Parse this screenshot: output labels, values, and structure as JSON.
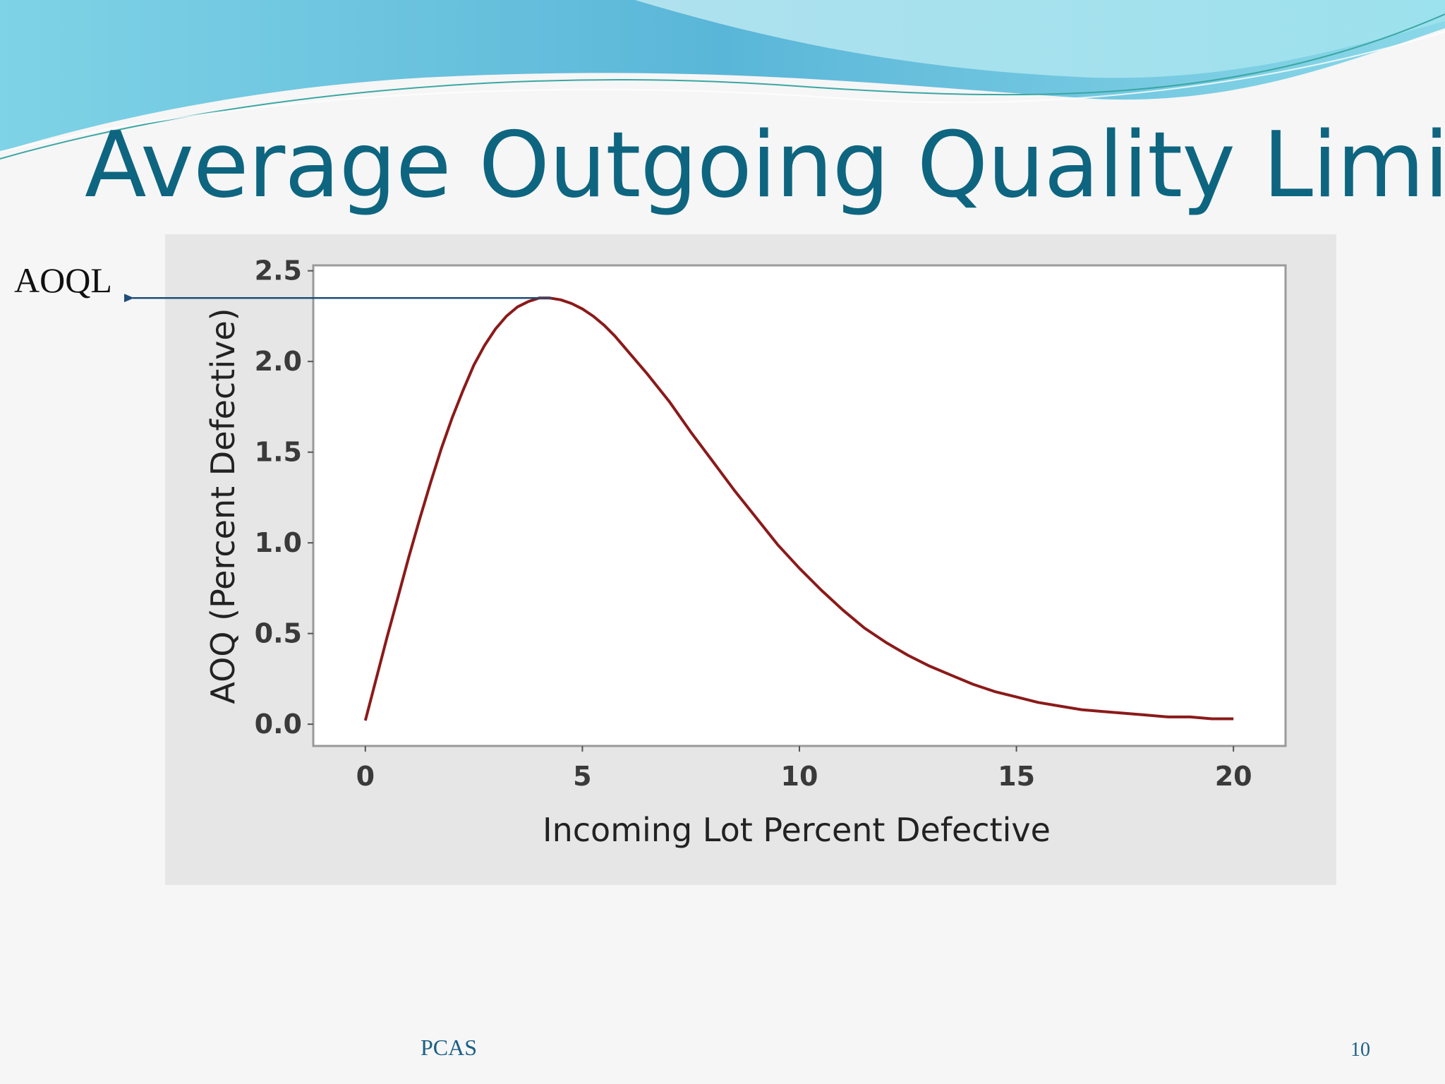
{
  "slide": {
    "title": "Average Outgoing Quality Limit",
    "footer_center": "PCAS",
    "page_number": "10"
  },
  "annotation": {
    "label": "AOQL",
    "points_to_y": 2.35
  },
  "chart_data": {
    "type": "line",
    "title": "",
    "xlabel": "Incoming Lot Percent Defective",
    "ylabel": "AOQ (Percent Defective)",
    "xlim": [
      -1.2,
      21.2
    ],
    "ylim": [
      -0.12,
      2.53
    ],
    "xticks": [
      0,
      5,
      10,
      15,
      20
    ],
    "xtick_labels": [
      "0",
      "5",
      "10",
      "15",
      "20"
    ],
    "yticks": [
      0.0,
      0.5,
      1.0,
      1.5,
      2.0,
      2.5
    ],
    "ytick_labels": [
      "0.0",
      "0.5",
      "1.0",
      "1.5",
      "2.0",
      "2.5"
    ],
    "grid": false,
    "colors": {
      "line": "#8b1a1a",
      "annotation": "#1f4e79",
      "panel": "#e6e6e6",
      "plot": "#ffffff",
      "frame": "#9a9a9a"
    },
    "series": [
      {
        "name": "AOQ",
        "x": [
          0,
          0.25,
          0.5,
          0.75,
          1.0,
          1.25,
          1.5,
          1.75,
          2.0,
          2.25,
          2.5,
          2.75,
          3.0,
          3.25,
          3.5,
          3.75,
          4.0,
          4.25,
          4.5,
          4.75,
          5.0,
          5.25,
          5.5,
          5.75,
          6.0,
          6.5,
          7.0,
          7.5,
          8.0,
          8.5,
          9.0,
          9.5,
          10.0,
          10.5,
          11.0,
          11.5,
          12.0,
          12.5,
          13.0,
          13.5,
          14.0,
          14.5,
          15.0,
          15.5,
          16.0,
          16.5,
          17.0,
          17.5,
          18.0,
          18.5,
          19.0,
          19.5,
          20.0
        ],
        "y": [
          0.02,
          0.25,
          0.48,
          0.7,
          0.92,
          1.13,
          1.33,
          1.52,
          1.69,
          1.84,
          1.98,
          2.09,
          2.18,
          2.25,
          2.3,
          2.33,
          2.35,
          2.35,
          2.34,
          2.32,
          2.29,
          2.25,
          2.2,
          2.14,
          2.07,
          1.93,
          1.78,
          1.61,
          1.45,
          1.29,
          1.14,
          0.99,
          0.86,
          0.74,
          0.63,
          0.53,
          0.45,
          0.38,
          0.32,
          0.27,
          0.22,
          0.18,
          0.15,
          0.12,
          0.1,
          0.08,
          0.07,
          0.06,
          0.05,
          0.04,
          0.04,
          0.03,
          0.03
        ]
      }
    ]
  }
}
